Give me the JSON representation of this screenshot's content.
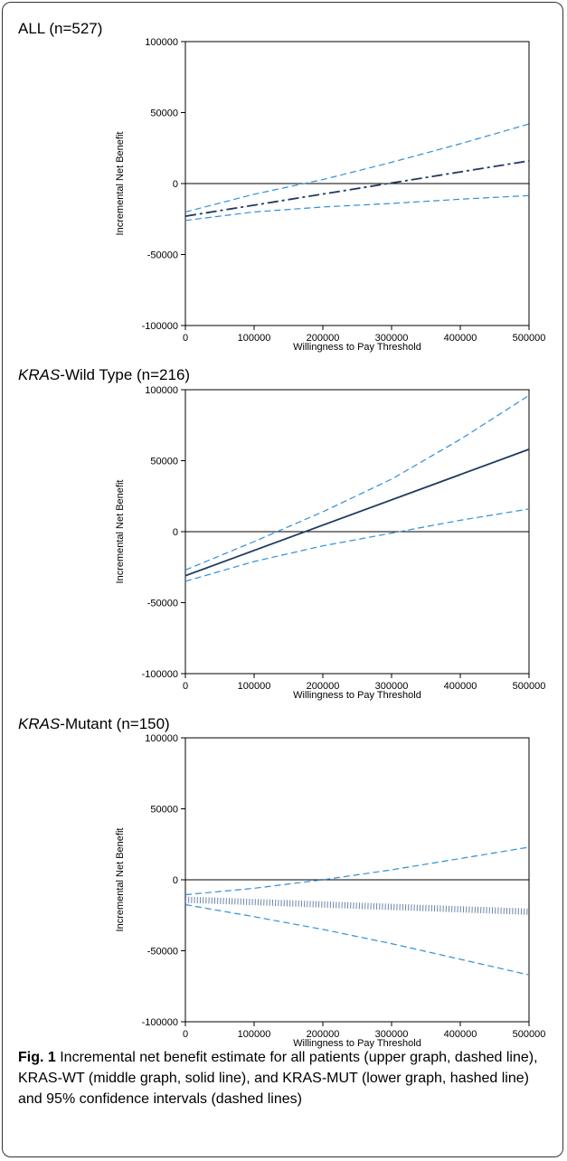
{
  "panels": [
    {
      "title_em": "",
      "title_rest": "ALL (n=527)"
    },
    {
      "title_em": "KRAS",
      "title_rest": "-Wild Type (n=216)"
    },
    {
      "title_em": "KRAS",
      "title_rest": "-Mutant (n=150)"
    }
  ],
  "caption": {
    "label": "Fig. 1",
    "text": " Incremental net benefit estimate for all patients (upper graph, dashed line), KRAS-WT (middle graph, solid line), and KRAS-MUT (lower graph, hashed line) and 95% confidence intervals (dashed lines)"
  },
  "colors": {
    "estimate": "#1f3a5f",
    "ci": "#2f8fd8",
    "zero_line": "#000000"
  },
  "chart_data": [
    {
      "type": "line",
      "title": "ALL (n=527)",
      "xlabel": "Willingness to Pay Threshold",
      "ylabel": "Incremental Net Benefit",
      "xlim": [
        0,
        500000
      ],
      "ylim": [
        -100000,
        100000
      ],
      "xticks": [
        0,
        100000,
        200000,
        300000,
        400000,
        500000
      ],
      "yticks": [
        100000,
        50000,
        0,
        -50000,
        -100000
      ],
      "grid": false,
      "series": [
        {
          "style": "dash-dot",
          "x": [
            0,
            500000
          ],
          "y": [
            -23000,
            16000
          ]
        },
        {
          "style": "dashed",
          "x": [
            0,
            100000,
            200000,
            300000,
            400000,
            500000
          ],
          "y": [
            -20000,
            -7500,
            2800,
            15000,
            28000,
            42000
          ]
        },
        {
          "style": "dashed",
          "x": [
            0,
            100000,
            200000,
            300000,
            400000,
            500000
          ],
          "y": [
            -26000,
            -20000,
            -16500,
            -14000,
            -11000,
            -8500
          ]
        }
      ]
    },
    {
      "type": "line",
      "title": "KRAS-Wild Type (n=216)",
      "xlabel": "Willingness to Pay Threshold",
      "ylabel": "Incremental Net Benefit",
      "xlim": [
        0,
        500000
      ],
      "ylim": [
        -100000,
        100000
      ],
      "xticks": [
        0,
        100000,
        200000,
        300000,
        400000,
        500000
      ],
      "yticks": [
        100000,
        50000,
        0,
        -50000,
        -100000
      ],
      "grid": false,
      "series": [
        {
          "style": "solid",
          "x": [
            0,
            500000
          ],
          "y": [
            -31000,
            58000
          ]
        },
        {
          "style": "dashed",
          "x": [
            0,
            100000,
            200000,
            300000,
            400000,
            500000
          ],
          "y": [
            -27000,
            -7000,
            14000,
            37000,
            65000,
            96000
          ]
        },
        {
          "style": "dashed",
          "x": [
            0,
            100000,
            200000,
            300000,
            400000,
            500000
          ],
          "y": [
            -35000,
            -21000,
            -10000,
            -1000,
            8000,
            16000
          ]
        }
      ]
    },
    {
      "type": "line",
      "title": "KRAS-Mutant (n=150)",
      "xlabel": "Willingness to Pay Threshold",
      "ylabel": "Incremental Net Benefit",
      "xlim": [
        0,
        500000
      ],
      "ylim": [
        -100000,
        100000
      ],
      "xticks": [
        0,
        100000,
        200000,
        300000,
        400000,
        500000
      ],
      "yticks": [
        100000,
        50000,
        0,
        -50000,
        -100000
      ],
      "grid": false,
      "series": [
        {
          "style": "hashed",
          "x": [
            0,
            500000
          ],
          "y": [
            -14000,
            -22500
          ]
        },
        {
          "style": "dashed",
          "x": [
            0,
            100000,
            200000,
            300000,
            400000,
            500000
          ],
          "y": [
            -10500,
            -6000,
            0,
            7000,
            15000,
            23000
          ]
        },
        {
          "style": "dashed",
          "x": [
            0,
            100000,
            200000,
            300000,
            400000,
            500000
          ],
          "y": [
            -17500,
            -26000,
            -35000,
            -45000,
            -56000,
            -67000
          ]
        }
      ]
    }
  ]
}
